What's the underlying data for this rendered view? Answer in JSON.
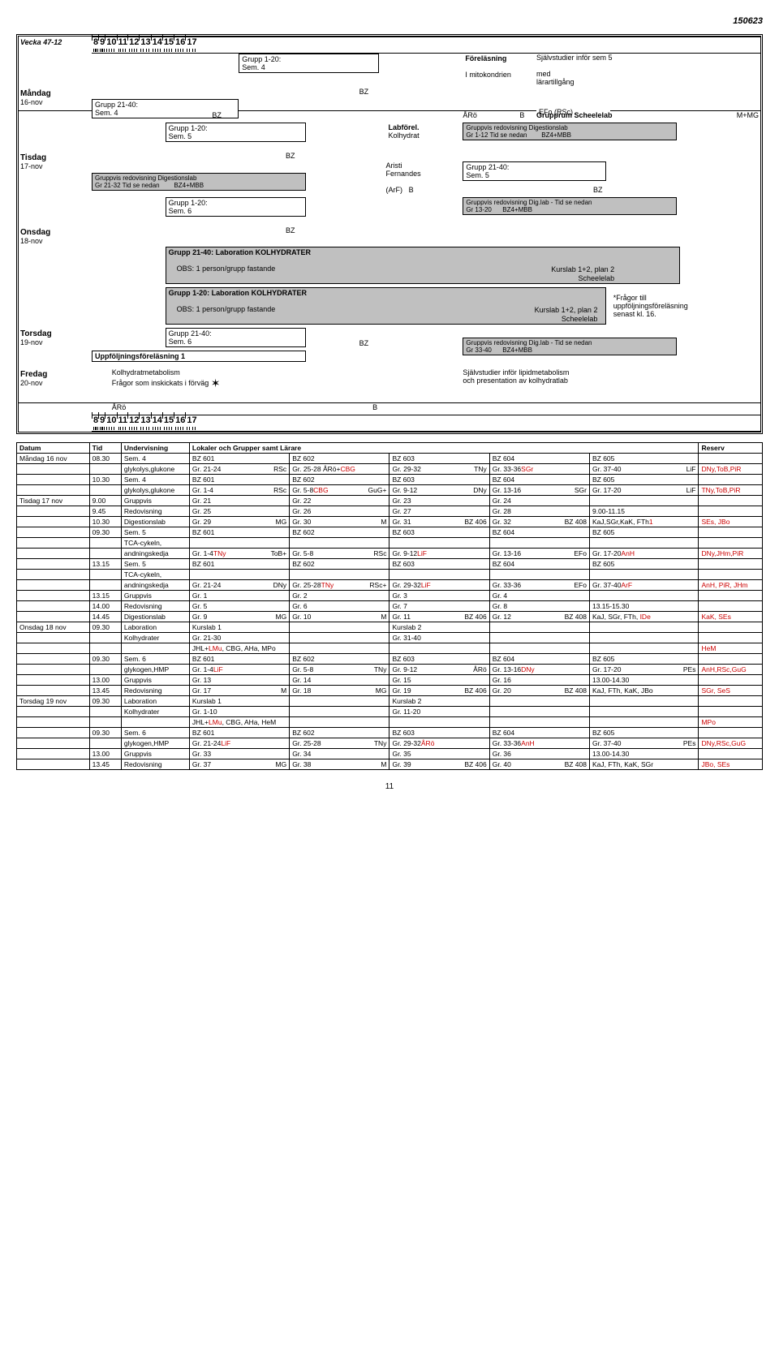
{
  "header_date": "150623",
  "week_label": "Vecka 47-12",
  "time_headers": [
    "8",
    "9",
    "10",
    "11",
    "12",
    "13",
    "14",
    "15",
    "16",
    "17"
  ],
  "days": [
    {
      "name": "Måndag",
      "date": "16-nov"
    },
    {
      "name": "Tisdag",
      "date": "17-nov"
    },
    {
      "name": "Onsdag",
      "date": "18-nov"
    },
    {
      "name": "Torsdag",
      "date": "19-nov"
    },
    {
      "name": "Fredag",
      "date": "20-nov"
    }
  ],
  "mon": {
    "g120": "Grupp 1-20:",
    "sem4": "Sem. 4",
    "forelasning": "Föreläsning",
    "imito": "I mitokondrien",
    "sjalv": "Självstudier inför sem 5",
    "med": "med",
    "larart": "lärartillgång",
    "g2140": "Grupp 21-40:",
    "bz": "BZ",
    "efo": "EFo (RSc)",
    "aro": "ÅRö",
    "b": "B",
    "grupprum": "Grupprum Scheelelab",
    "mmg": "M+MG",
    "g120b": "Grupp 1-20:",
    "sem5": "Sem. 5",
    "labforel": "Labförel.",
    "kolhydrat": "Kolhydrat",
    "gruppvis": "Gruppvis redovisning Digestionslab",
    "gr112": "Gr 1-12  Tid se nedan",
    "bz4mbb": "BZ4+MBB"
  },
  "tis": {
    "bz": "BZ",
    "gruppvis": "Gruppvis redovisning Digestionslab",
    "gr2132": "Gr 21-32 Tid se nedan",
    "bz4mbb": "BZ4+MBB",
    "g120": "Grupp 1-20:",
    "sem6": "Sem. 6",
    "aristi": "Aristi",
    "fernandes": "Fernandes",
    "arf": "(ArF)",
    "b": "B",
    "g2140": "Grupp 21-40:",
    "sem5": "Sem. 5",
    "gruppvisdig": "Gruppvis redovisning Dig.lab - Tid se nedan",
    "gr1320": "Gr 13-20",
    "bz2": "BZ"
  },
  "ons": {
    "bz": "BZ",
    "lab2140": "Grupp 21-40: Laboration KOLHYDRATER",
    "obs": "OBS: 1 person/grupp fastande",
    "kurslab": "Kurslab 1+2, plan 2",
    "scheele": "Scheelelab"
  },
  "tor": {
    "lab120": "Grupp 1-20: Laboration KOLHYDRATER",
    "obs": "OBS: 1 person/grupp fastande",
    "kurslab": "Kurslab 1+2, plan 2",
    "scheele": "Scheelelab",
    "fragor": "*Frågor till",
    "uppfol": "uppföljningsföreläsning",
    "senast": "senast kl. 16.",
    "g2140": "Grupp 21-40:",
    "sem6": "Sem. 6",
    "bz": "BZ",
    "gruppvisdig": "Gruppvis redovisning Dig.lab - Tid se nedan",
    "gr3340": "Gr 33-40",
    "bz4mbb": "BZ4+MBB",
    "uppfol1": "Uppföljningsföreläsning 1"
  },
  "fre": {
    "kolhydrat": "Kolhydratmetabolism",
    "fragor": "Frågor som inskickats i förväg",
    "sjalv": "Självstudier inför lipidmetabolism",
    "och": "och presentation av kolhydratlab",
    "aro": "ÅRö",
    "b": "B"
  },
  "table_headers": [
    "Datum",
    "Tid",
    "Undervisning",
    "Lokaler och Grupper samt Lärare",
    "",
    "",
    "",
    "",
    "Reserv"
  ],
  "rows": [
    {
      "datum": "Måndag 16 nov",
      "tid": "08.30",
      "und": "Sem. 4",
      "c1": "BZ 601",
      "c2": "BZ 602",
      "c3": "BZ 603",
      "c4": "BZ 604",
      "c5": "BZ 605",
      "res": ""
    },
    {
      "datum": "",
      "tid": "",
      "und": "glykolys,glukone",
      "c1": "Gr. 21-24",
      "c1b": "RSc",
      "c2": "Gr. 25-28  ÅRö+",
      "c2r": "CBG",
      "c3": "Gr. 29-32",
      "c3b": "TNy",
      "c4": "Gr. 33-36",
      "c4r": "SGr",
      "c5": "Gr. 37-40",
      "c5b": "LiF",
      "res": "DNy,ToB,PiR"
    },
    {
      "datum": "",
      "tid": "10.30",
      "und": "Sem. 4",
      "c1": "BZ 601",
      "c2": "BZ 602",
      "c3": "BZ 603",
      "c4": "BZ 604",
      "c5": "BZ 605",
      "res": ""
    },
    {
      "datum": "",
      "tid": "",
      "und": "glykolys,glukone",
      "c1": "Gr. 1-4",
      "c1b": "RSc",
      "c2": "Gr. 5-8",
      "c2b": "GuG+",
      "c2r": "CBG",
      "c3": "Gr. 9-12",
      "c3b": "DNy",
      "c4": "Gr. 13-16",
      "c4b": "SGr",
      "c5": "Gr. 17-20",
      "c5b": "LiF",
      "res": "TNy,ToB,PiR"
    },
    {
      "datum": "Tisdag 17 nov",
      "tid": "9.00",
      "und": "Gruppvis",
      "c1": "Gr. 21",
      "c2": "Gr. 22",
      "c3": "Gr. 23",
      "c4": "Gr. 24",
      "c5": "",
      "res": ""
    },
    {
      "datum": "",
      "tid": "9.45",
      "und": "Redovisning",
      "c1": "Gr. 25",
      "c2": "Gr. 26",
      "c3": "Gr. 27",
      "c4": "Gr. 28",
      "c5": "9.00-11.15",
      "res": ""
    },
    {
      "datum": "",
      "tid": "10.30",
      "und": "Digestionslab",
      "c1": "Gr. 29",
      "c1b": "MG",
      "c2": "Gr. 30",
      "c2b": "M",
      "c3": "Gr. 31",
      "c3b": "BZ 406",
      "c4": "Gr. 32",
      "c4b": "BZ 408",
      "c5": "KaJ,SGr,KaK, FTh",
      "c5r": "1",
      "res": "SEs, JBo"
    },
    {
      "datum": "",
      "tid": "09.30",
      "und": "Sem. 5",
      "c1": "BZ 601",
      "c2": "BZ 602",
      "c3": "BZ 603",
      "c4": "BZ 604",
      "c5": "BZ 605",
      "res": ""
    },
    {
      "datum": "",
      "tid": "",
      "und": "TCA-cykeln,",
      "c1": "",
      "c2": "",
      "c3": "",
      "c4": "",
      "c5": "",
      "res": ""
    },
    {
      "datum": "",
      "tid": "",
      "und": "andningskedja",
      "c1": "Gr. 1-4",
      "c1b": "ToB+",
      "c1r": "TNy",
      "c2": "Gr. 5-8",
      "c2b": "RSc",
      "c3": "Gr. 9-12",
      "c3r": "LiF",
      "c4": "Gr. 13-16",
      "c4b": "EFo",
      "c5": "Gr. 17-20",
      "c5r": "AnH",
      "res": "DNy,JHm,PiR"
    },
    {
      "datum": "",
      "tid": "13.15",
      "und": "Sem. 5",
      "c1": "BZ 601",
      "c2": "BZ 602",
      "c3": "BZ 603",
      "c4": "BZ 604",
      "c5": "BZ 605",
      "res": ""
    },
    {
      "datum": "",
      "tid": "",
      "und": "TCA-cykeln,",
      "c1": "",
      "c2": "",
      "c3": "",
      "c4": "",
      "c5": "",
      "res": ""
    },
    {
      "datum": "",
      "tid": "",
      "und": "andningskedja",
      "c1": "Gr. 21-24",
      "c1b": "DNy",
      "c2": "Gr. 25-28",
      "c2b": "RSc+",
      "c2r": "TNy",
      "c3": "Gr. 29-32",
      "c3r": "LiF",
      "c4": "Gr. 33-36",
      "c4b": "EFo",
      "c5": "Gr. 37-40",
      "c5r": "ArF",
      "res": "AnH, PiR, JHm"
    },
    {
      "datum": "",
      "tid": "13.15",
      "und": "Gruppvis",
      "c1": "Gr. 1",
      "c2": "Gr. 2",
      "c3": "Gr. 3",
      "c4": "Gr. 4",
      "c5": "",
      "res": ""
    },
    {
      "datum": "",
      "tid": "14.00",
      "und": "Redovisning",
      "c1": "Gr. 5",
      "c2": "Gr. 6",
      "c3": "Gr. 7",
      "c4": "Gr. 8",
      "c5": "13.15-15.30",
      "res": ""
    },
    {
      "datum": "",
      "tid": "14.45",
      "und": "Digestionslab",
      "c1": "Gr. 9",
      "c1b": "MG",
      "c2": "Gr. 10",
      "c2b": "M",
      "c3": "Gr. 11",
      "c3b": "BZ 406",
      "c4": "Gr. 12",
      "c4b": "BZ 408",
      "c5": "KaJ, SGr, FTh, ",
      "c5r": "IDe",
      "res": "KaK, SEs"
    },
    {
      "datum": "Onsdag 18 nov",
      "tid": "09.30",
      "und": "Laboration",
      "c1": "Kurslab 1",
      "c2": "",
      "c3": "Kurslab 2",
      "c4": "",
      "c5": "",
      "res": ""
    },
    {
      "datum": "",
      "tid": "",
      "und": "Kolhydrater",
      "c1": "Gr. 21-30",
      "c2": "",
      "c3": "Gr. 31-40",
      "c4": "",
      "c5": "",
      "res": ""
    },
    {
      "datum": "",
      "tid": "",
      "und": "",
      "c1": "JHL+",
      "c1r": "LMu",
      "c1c": ", CBG, AHa, MPo",
      "c2": "",
      "c3": "",
      "c4": "",
      "c5": "",
      "res": "HeM"
    },
    {
      "datum": "",
      "tid": "09.30",
      "und": "Sem. 6",
      "c1": "BZ 601",
      "c2": "BZ 602",
      "c3": "BZ 603",
      "c4": "BZ 604",
      "c5": "BZ 605",
      "res": ""
    },
    {
      "datum": "",
      "tid": "",
      "und": "glykogen,HMP",
      "c1": "Gr. 1-4",
      "c1r": "LiF",
      "c2": "Gr. 5-8",
      "c2b": "TNy",
      "c3": "Gr. 9-12",
      "c3b": "ÅRö",
      "c4": "Gr. 13-16",
      "c4r": "DNy",
      "c5": "Gr. 17-20",
      "c5b": "PEs",
      "res": "AnH,RSc,GuG"
    },
    {
      "datum": "",
      "tid": "13.00",
      "und": "Gruppvis",
      "c1": "Gr. 13",
      "c2": "Gr. 14",
      "c3": "Gr. 15",
      "c4": "Gr. 16",
      "c5": "13.00-14.30",
      "res": ""
    },
    {
      "datum": "",
      "tid": "13.45",
      "und": "Redovisning",
      "c1": "Gr. 17",
      "c1b": "M",
      "c2": "Gr. 18",
      "c2b": "MG",
      "c3": "Gr. 19",
      "c3b": "BZ 406",
      "c4": "Gr. 20",
      "c4b": "BZ 408",
      "c5": "KaJ, FTh, KaK, JBo",
      "res": "SGr, SeS"
    },
    {
      "datum": "Torsdag 19 nov",
      "tid": "09.30",
      "und": "Laboration",
      "c1": "Kurslab 1",
      "c2": "",
      "c3": "Kurslab 2",
      "c4": "",
      "c5": "",
      "res": ""
    },
    {
      "datum": "",
      "tid": "",
      "und": "Kolhydrater",
      "c1": "Gr. 1-10",
      "c2": "",
      "c3": "Gr. 11-20",
      "c4": "",
      "c5": "",
      "res": ""
    },
    {
      "datum": "",
      "tid": "",
      "und": "",
      "c1": "JHL+",
      "c1r": "LMu",
      "c1c": ", CBG, AHa, HeM",
      "c2": "",
      "c3": "",
      "c4": "",
      "c5": "",
      "res": "MPo"
    },
    {
      "datum": "",
      "tid": "09.30",
      "und": "Sem. 6",
      "c1": "BZ 601",
      "c2": "BZ 602",
      "c3": "BZ 603",
      "c4": "BZ 604",
      "c5": "BZ 605",
      "res": ""
    },
    {
      "datum": "",
      "tid": "",
      "und": "glykogen,HMP",
      "c1": "Gr. 21-24",
      "c1r": "LiF",
      "c2": "Gr. 25-28",
      "c2b": "TNy",
      "c3": "Gr. 29-32",
      "c3r": "ÅRö",
      "c4": "Gr. 33-36",
      "c4r": "AnH",
      "c5": "Gr. 37-40",
      "c5b": "PEs",
      "res": "DNy,RSc,GuG"
    },
    {
      "datum": "",
      "tid": "13.00",
      "und": "Gruppvis",
      "c1": "Gr. 33",
      "c2": "Gr. 34",
      "c3": "Gr. 35",
      "c4": "Gr. 36",
      "c5": "13.00-14.30",
      "res": ""
    },
    {
      "datum": "",
      "tid": "13.45",
      "und": "Redovisning",
      "c1": "Gr. 37",
      "c1b": "MG",
      "c2": "Gr. 38",
      "c2b": "M",
      "c3": "Gr. 39",
      "c3b": "BZ 406",
      "c4": "Gr. 40",
      "c4b": "BZ 408",
      "c5": "KaJ, FTh, KaK, SGr",
      "res": "JBo, SEs"
    }
  ],
  "page_num": "11",
  "colors": {
    "red": "#cc0000",
    "grey": "#c0c0c0",
    "black": "#000000",
    "white": "#ffffff"
  }
}
